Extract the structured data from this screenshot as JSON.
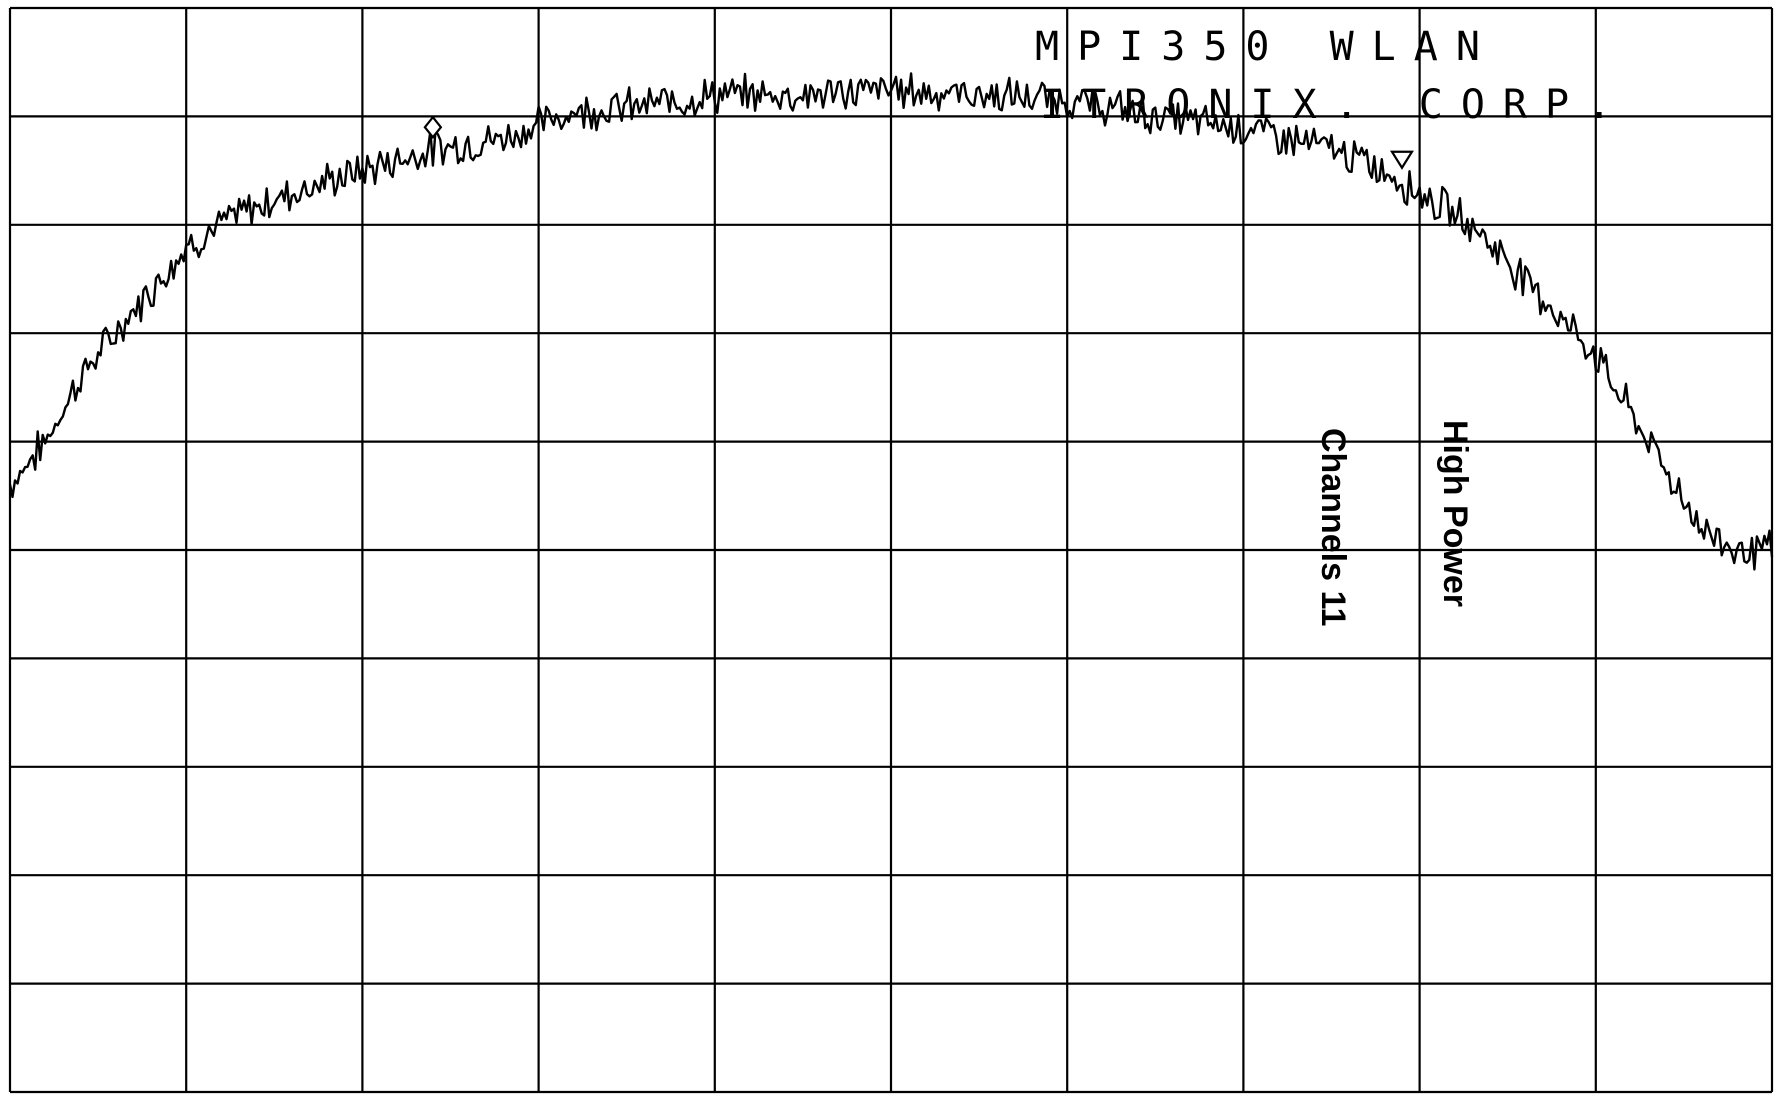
{
  "plot_title": {
    "line1": "MPI350 WLAN",
    "line2": "ITRONIX. CORP."
  },
  "annotations": {
    "channel": "Channels 11",
    "power": "High Power"
  },
  "markers": {
    "diamond_icon": "diamond-marker-icon",
    "triangle_icon": "triangle-down-marker-icon"
  },
  "chart_data": {
    "type": "line",
    "title": "",
    "xlabel": "",
    "ylabel": "",
    "grid": true,
    "x_divisions": 10,
    "y_divisions": 10,
    "xlim": [
      0,
      10
    ],
    "ylim": [
      0,
      10
    ],
    "series": [
      {
        "x": [
          0,
          0.2,
          0.4,
          0.6,
          0.8,
          1.0,
          1.3,
          1.6,
          2.0,
          2.4,
          2.8,
          3.2,
          3.6,
          4.0,
          4.5,
          5.0,
          5.5,
          6.0,
          6.5,
          7.0,
          7.5,
          7.8,
          8.0,
          8.3,
          8.6,
          9.0,
          9.3,
          9.6,
          9.8,
          10.0
        ],
        "y": [
          5.6,
          6.0,
          6.6,
          7.0,
          7.4,
          7.8,
          8.1,
          8.3,
          8.5,
          8.7,
          8.8,
          9.05,
          9.1,
          9.2,
          9.2,
          9.25,
          9.2,
          9.15,
          9.0,
          8.9,
          8.7,
          8.5,
          8.3,
          8.0,
          7.5,
          6.8,
          6.0,
          5.2,
          5.0,
          5.0
        ]
      }
    ],
    "marker_points": [
      {
        "symbol": "diamond",
        "x": 2.4,
        "y": 8.9
      },
      {
        "symbol": "triangle",
        "x": 7.9,
        "y": 8.6
      }
    ]
  }
}
